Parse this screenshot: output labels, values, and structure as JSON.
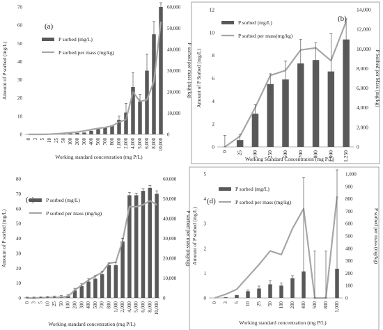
{
  "chart_data": [
    {
      "type": "bar",
      "panel_label": "(a)",
      "categories": [
        "0",
        "3",
        "5",
        "10",
        "25",
        "50",
        "100",
        "200",
        "300",
        "400",
        "500",
        "700",
        "800",
        "1,000",
        "2,000",
        "4,000",
        "5,000",
        "6,000",
        "8,000",
        "10,000"
      ],
      "series": [
        {
          "name": "P sorbed (mg/L)",
          "type": "bar",
          "axis": "left",
          "color": "#595959",
          "values": [
            0.1,
            0.1,
            0.1,
            0.2,
            0.3,
            0.4,
            0.6,
            0.8,
            1.0,
            2.0,
            3.0,
            4.0,
            5.0,
            8.0,
            12.0,
            26.0,
            18.0,
            35.0,
            55.0,
            70.0
          ],
          "errors": [
            0,
            0,
            0,
            0,
            0,
            0,
            0,
            0,
            0,
            0,
            0,
            0,
            0,
            2,
            5,
            8,
            4,
            9,
            7,
            4
          ]
        },
        {
          "name": "P sorbed per mass (mg/kg)",
          "type": "line",
          "axis": "right",
          "color": "#a6a6a6",
          "values": [
            0,
            0,
            0,
            100,
            300,
            500,
            800,
            1100,
            1600,
            2300,
            2800,
            3300,
            4000,
            5800,
            7000,
            20000,
            15500,
            16300,
            25000,
            53000
          ]
        }
      ],
      "left_axis": {
        "label": "Amount of P sorbed (mg/L)",
        "ticks": [
          "0",
          "10",
          "20",
          "30",
          "40",
          "50",
          "60",
          "70"
        ],
        "range": [
          0,
          70
        ]
      },
      "right_axis": {
        "label": "P sorbed per mass (mg/kg)",
        "ticks": [
          "0",
          "10,000",
          "20,000",
          "30,000",
          "40,000",
          "50,000",
          "60,000"
        ],
        "range": [
          0,
          60000
        ]
      },
      "xlabel": "Working standard concentration (mg P/L)",
      "legend": "top-left"
    },
    {
      "type": "bar",
      "panel_label": "(b)",
      "categories": [
        "0",
        "25",
        "100",
        "250",
        "500",
        "700",
        "800",
        "1,000",
        "1,250"
      ],
      "series": [
        {
          "name": "P sorbed (mg/L)",
          "type": "bar",
          "axis": "left",
          "color": "#595959",
          "values": [
            0.0,
            0.6,
            2.9,
            5.5,
            5.9,
            7.3,
            7.6,
            6.6,
            9.4
          ],
          "errors": [
            1.0,
            0.5,
            0.8,
            0.9,
            1.6,
            2.1,
            1.5,
            3.3,
            1.8
          ]
        },
        {
          "name": "P sorbed per mass(mg/kg)",
          "type": "line",
          "axis": "right",
          "color": "#a6a6a6",
          "values": [
            0,
            1100,
            4000,
            7300,
            7800,
            9900,
            10100,
            8800,
            12800
          ]
        }
      ],
      "left_axis": {
        "label": "Amount of P Sorbed (mg/L)",
        "ticks": [
          "0",
          "2",
          "4",
          "6",
          "8",
          "10",
          "12"
        ],
        "range": [
          0,
          12
        ]
      },
      "right_axis": {
        "label": "P Sorbed per Mass (mg/kg)",
        "ticks": [
          "0",
          "2,000",
          "4,000",
          "6,000",
          "8,000",
          "10,000",
          "12,000",
          "14,000"
        ],
        "range": [
          0,
          14000
        ]
      },
      "xlabel": "Working Standard Concentration (mg P/L)",
      "legend": "top-left"
    },
    {
      "type": "bar",
      "panel_label": "(c)",
      "categories": [
        "0",
        "3",
        "5",
        "10",
        "25",
        "50",
        "100",
        "200",
        "300",
        "400",
        "500",
        "700",
        "800",
        "1,000",
        "2,000",
        "4,000",
        "5,000",
        "6,000",
        "8,000",
        "10,000"
      ],
      "series": [
        {
          "name": "P sorbed (mg/L)",
          "type": "bar",
          "axis": "left",
          "color": "#595959",
          "values": [
            0.3,
            0.3,
            0.5,
            0.6,
            0.8,
            1.0,
            1.5,
            5.0,
            8.0,
            11.0,
            13.0,
            16.0,
            22.0,
            22.0,
            38.0,
            69.0,
            69.0,
            72.0,
            74.0,
            70.0
          ],
          "errors": [
            0.3,
            0.3,
            0.3,
            0.4,
            0.5,
            0.6,
            0.8,
            1.5,
            1.5,
            2,
            2,
            2,
            1.5,
            2,
            2,
            2,
            1.5,
            1.5,
            1.5,
            2
          ]
        },
        {
          "name": "P sorbed per mass (mg/kg)",
          "type": "line",
          "axis": "right",
          "color": "#a6a6a6",
          "values": [
            0,
            0,
            100,
            200,
            300,
            400,
            700,
            4000,
            6500,
            9000,
            11000,
            13000,
            17500,
            18000,
            29000,
            46000,
            46000,
            47000,
            49000,
            47000
          ]
        }
      ],
      "left_axis": {
        "label": "Amount of P sorbed (mg/L)",
        "ticks": [
          "0",
          "10",
          "20",
          "30",
          "40",
          "50",
          "60",
          "70",
          "80"
        ],
        "range": [
          0,
          80
        ]
      },
      "right_axis": {
        "label": "P sorbed per mass (mg/kg)",
        "ticks": [
          "0",
          "10,000",
          "20,000",
          "30,000",
          "40,000",
          "50,000",
          "60,000"
        ],
        "range": [
          0,
          60000
        ]
      },
      "xlabel": "Working standard concentration (mg P/L)",
      "legend": "top-left"
    },
    {
      "type": "bar",
      "panel_label": "(d)",
      "categories": [
        "0",
        "3",
        "5",
        "10",
        "25",
        "50",
        "100",
        "200",
        "400",
        "500",
        "800",
        "1,000"
      ],
      "series": [
        {
          "name": "P sorbed (mg/L)",
          "type": "bar",
          "axis": "left",
          "color": "#595959",
          "values": [
            0.0,
            0.03,
            0.12,
            0.27,
            0.38,
            0.55,
            0.5,
            0.8,
            1.07,
            0.0,
            0.0,
            1.18
          ],
          "errors": [
            0,
            0,
            0,
            0.05,
            0.1,
            0.15,
            0.1,
            0.1,
            3.8,
            1.9,
            1.9,
            4.2
          ]
        },
        {
          "name": "P sorbed per mass (mg/kg)",
          "type": "line",
          "axis": "right",
          "color": "#a6a6a6",
          "values": [
            0,
            30,
            70,
            170,
            270,
            380,
            350,
            560,
            720,
            0,
            0,
            820
          ]
        }
      ],
      "left_axis": {
        "label": "Amount of P sorbed (mg/L)",
        "ticks": [
          "0",
          "1",
          "2",
          "3",
          "4",
          "5"
        ],
        "range": [
          0,
          5
        ]
      },
      "right_axis": {
        "label": "P sorbed per mass (mg/kg)",
        "ticks": [
          "0",
          "100",
          "200",
          "300",
          "400",
          "500",
          "600",
          "700",
          "800",
          "900",
          "1,000"
        ],
        "range": [
          0,
          1000
        ]
      },
      "xlabel": "Working standard concentration (mg P/L)",
      "legend": "top-right"
    }
  ]
}
